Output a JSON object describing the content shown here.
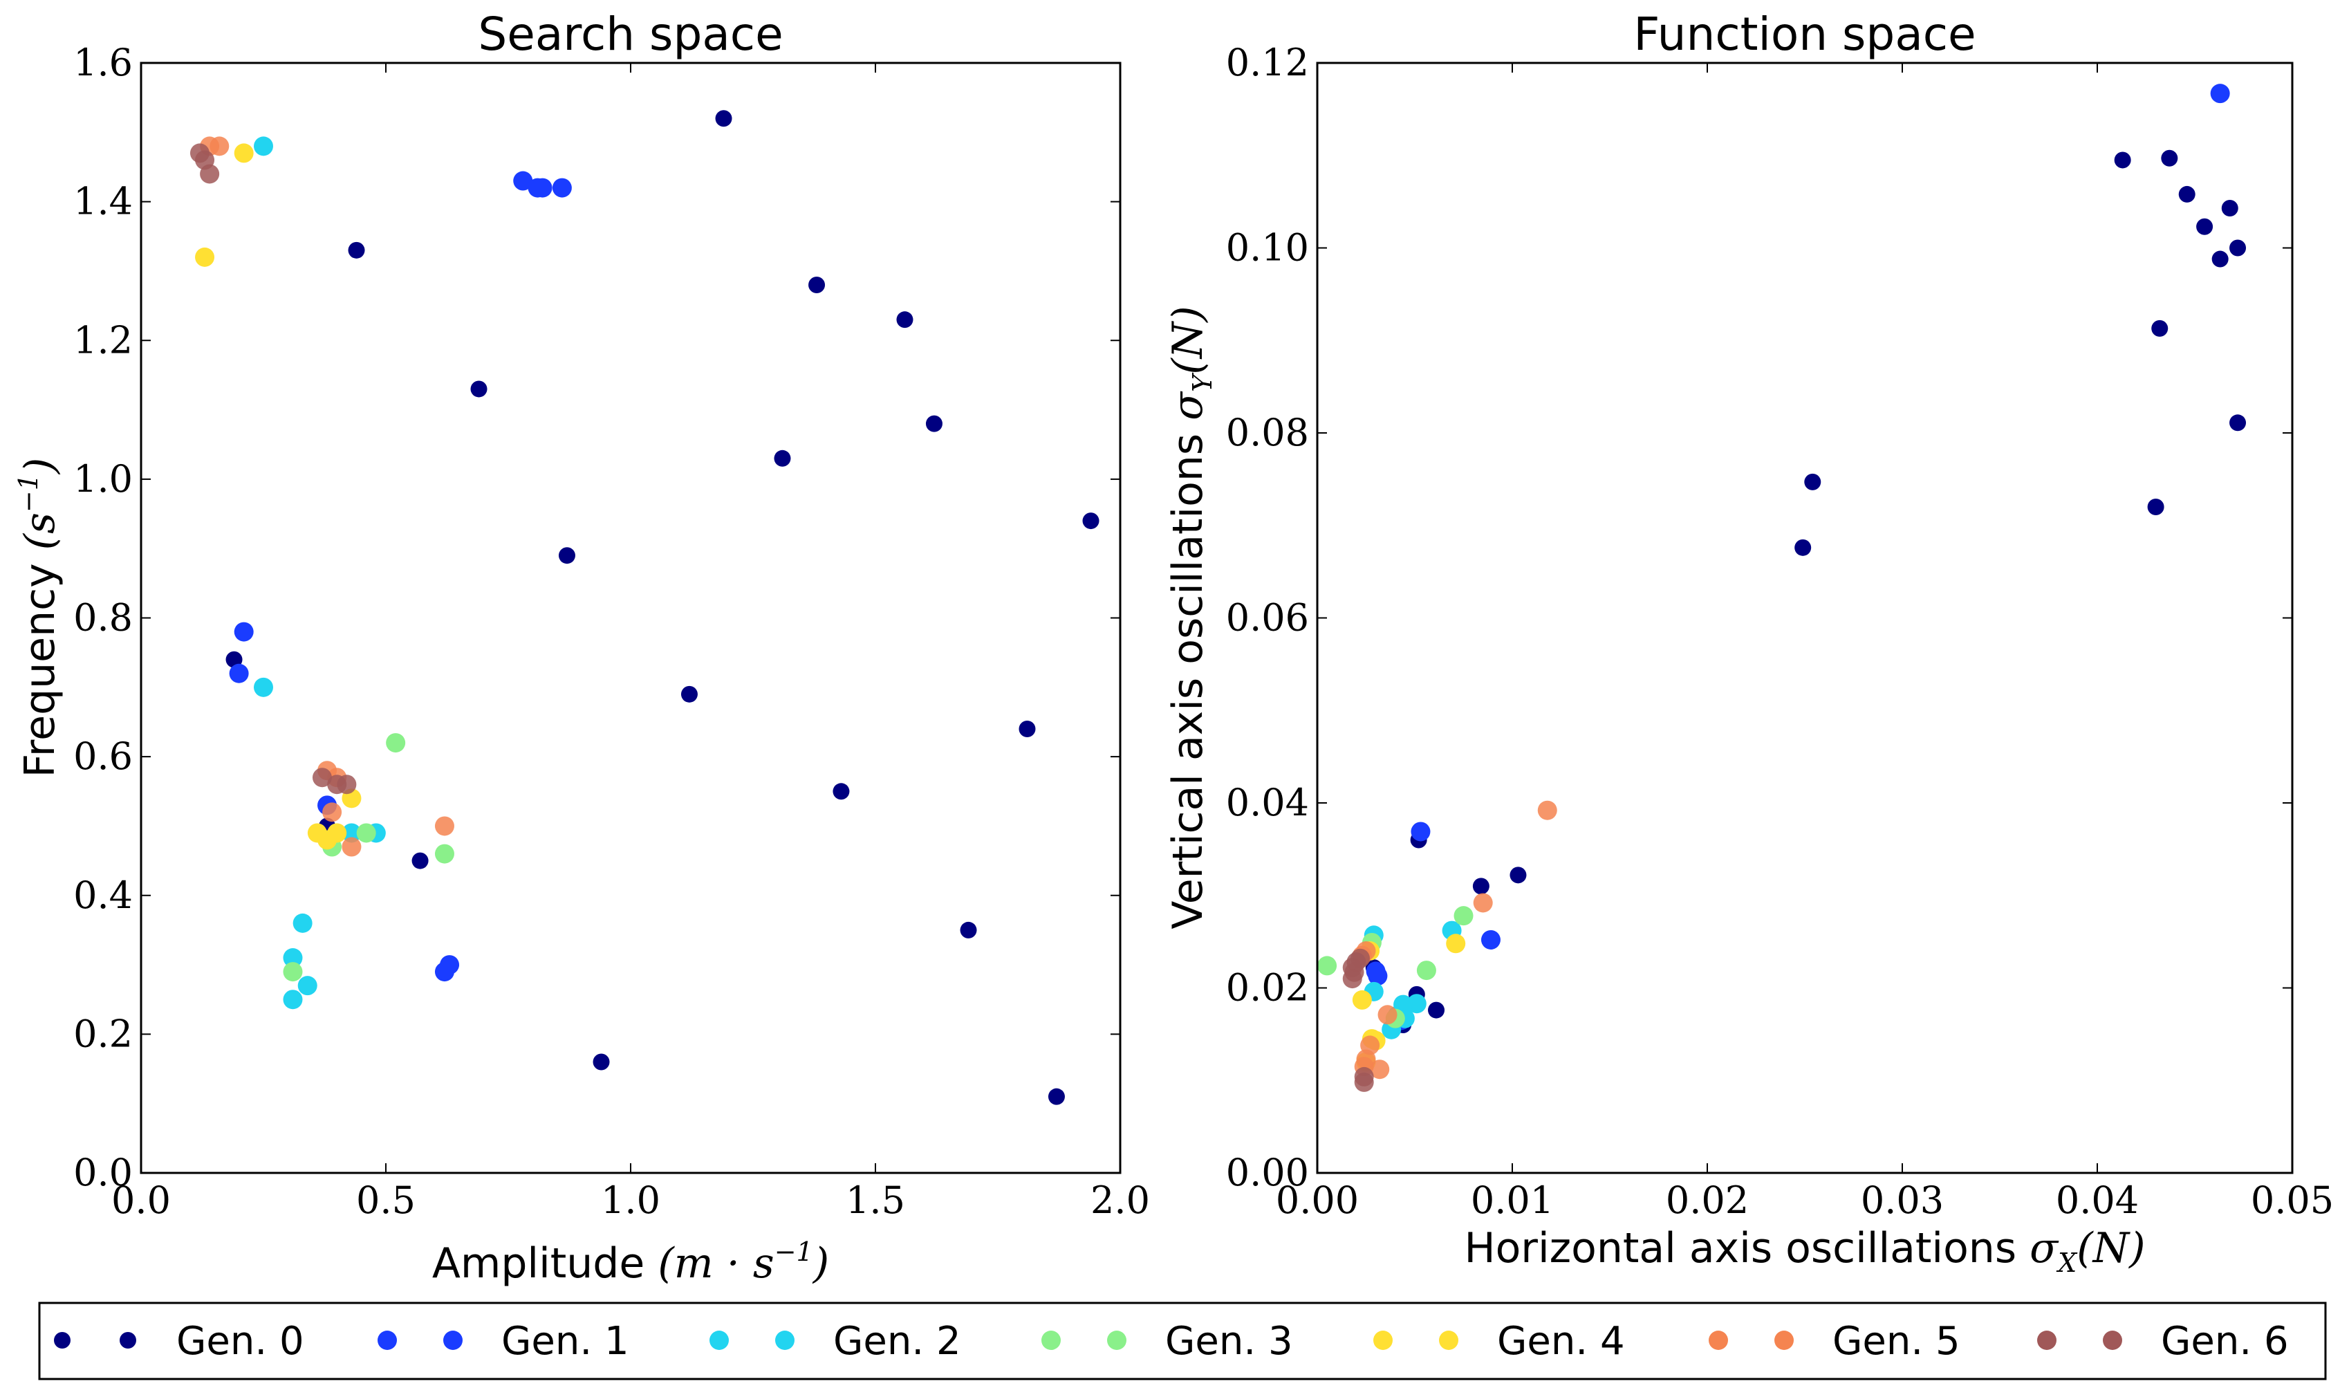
{
  "chart_data": [
    {
      "type": "scatter",
      "title": "Search space",
      "xlabel": "Amplitude",
      "xlabel_unit": "(m · s",
      "xlabel_unit_sup": "−1",
      "xlabel_unit_end": ")",
      "ylabel": "Frequency",
      "ylabel_unit": "(s",
      "ylabel_unit_sup": "−1",
      "ylabel_unit_end": ")",
      "xlim": [
        0,
        2.0
      ],
      "ylim": [
        0,
        1.6
      ],
      "xticks": [
        "0.0",
        "0.5",
        "1.0",
        "1.5",
        "2.0"
      ],
      "yticks": [
        "0.0",
        "0.2",
        "0.4",
        "0.6",
        "0.8",
        "1.0",
        "1.2",
        "1.4",
        "1.6"
      ],
      "grid": false,
      "series": [
        {
          "name": "Gen. 0",
          "color": "#000080",
          "points": [
            [
              1.19,
              1.52
            ],
            [
              0.44,
              1.33
            ],
            [
              1.38,
              1.28
            ],
            [
              1.56,
              1.23
            ],
            [
              0.69,
              1.13
            ],
            [
              1.62,
              1.08
            ],
            [
              1.31,
              1.03
            ],
            [
              1.94,
              0.94
            ],
            [
              0.87,
              0.89
            ],
            [
              0.19,
              0.74
            ],
            [
              1.12,
              0.69
            ],
            [
              1.81,
              0.64
            ],
            [
              1.43,
              0.55
            ],
            [
              0.38,
              0.5
            ],
            [
              0.57,
              0.45
            ],
            [
              1.69,
              0.35
            ],
            [
              0.94,
              0.16
            ],
            [
              1.87,
              0.11
            ]
          ]
        },
        {
          "name": "Gen. 1",
          "color": "#1a3cff",
          "points": [
            [
              0.78,
              1.43
            ],
            [
              0.81,
              1.42
            ],
            [
              0.82,
              1.42
            ],
            [
              0.86,
              1.42
            ],
            [
              0.21,
              0.78
            ],
            [
              0.2,
              0.72
            ],
            [
              0.38,
              0.53
            ],
            [
              0.62,
              0.29
            ],
            [
              0.63,
              0.3
            ]
          ]
        },
        {
          "name": "Gen. 2",
          "color": "#22d4f0",
          "points": [
            [
              0.25,
              1.48
            ],
            [
              0.25,
              0.7
            ],
            [
              0.33,
              0.36
            ],
            [
              0.31,
              0.31
            ],
            [
              0.34,
              0.27
            ],
            [
              0.31,
              0.25
            ],
            [
              0.48,
              0.49
            ],
            [
              0.43,
              0.49
            ]
          ]
        },
        {
          "name": "Gen. 3",
          "color": "#8af08a",
          "points": [
            [
              0.52,
              0.62
            ],
            [
              0.62,
              0.46
            ],
            [
              0.46,
              0.49
            ],
            [
              0.39,
              0.47
            ],
            [
              0.31,
              0.29
            ]
          ]
        },
        {
          "name": "Gen. 4",
          "color": "#ffe033",
          "points": [
            [
              0.21,
              1.47
            ],
            [
              0.13,
              1.32
            ],
            [
              0.43,
              0.54
            ],
            [
              0.36,
              0.49
            ],
            [
              0.38,
              0.48
            ],
            [
              0.4,
              0.49
            ]
          ]
        },
        {
          "name": "Gen. 5",
          "color": "#f58450",
          "points": [
            [
              0.16,
              1.48
            ],
            [
              0.14,
              1.48
            ],
            [
              0.38,
              0.58
            ],
            [
              0.4,
              0.57
            ],
            [
              0.39,
              0.52
            ],
            [
              0.62,
              0.5
            ],
            [
              0.43,
              0.47
            ]
          ]
        },
        {
          "name": "Gen. 6",
          "color": "#a05858",
          "points": [
            [
              0.12,
              1.47
            ],
            [
              0.13,
              1.46
            ],
            [
              0.14,
              1.44
            ],
            [
              0.37,
              0.57
            ],
            [
              0.42,
              0.56
            ],
            [
              0.4,
              0.56
            ]
          ]
        }
      ]
    },
    {
      "type": "scatter",
      "title": "Function space",
      "xlabel": "Horizontal axis oscillations",
      "xlabel_unit": "σ",
      "xlabel_unit_sub": "X",
      "xlabel_unit_end": "(N)",
      "ylabel": "Vertical axis oscillations",
      "ylabel_unit": "σ",
      "ylabel_unit_sub": "Y",
      "ylabel_unit_end": "(N)",
      "xlim": [
        0,
        0.05
      ],
      "ylim": [
        0,
        0.12
      ],
      "xticks": [
        "0.00",
        "0.01",
        "0.02",
        "0.03",
        "0.04",
        "0.05"
      ],
      "yticks": [
        "0.00",
        "0.02",
        "0.04",
        "0.06",
        "0.08",
        "0.10",
        "0.12"
      ],
      "grid": false,
      "series": [
        {
          "name": "Gen. 0",
          "color": "#000080",
          "points": [
            [
              0.0413,
              0.1095
            ],
            [
              0.0437,
              0.1097
            ],
            [
              0.0446,
              0.1058
            ],
            [
              0.0455,
              0.1023
            ],
            [
              0.0468,
              0.1043
            ],
            [
              0.0472,
              0.1
            ],
            [
              0.0463,
              0.0988
            ],
            [
              0.0432,
              0.0913
            ],
            [
              0.0472,
              0.0811
            ],
            [
              0.043,
              0.072
            ],
            [
              0.0254,
              0.0747
            ],
            [
              0.0249,
              0.0676
            ],
            [
              0.0103,
              0.0322
            ],
            [
              0.0084,
              0.031
            ],
            [
              0.0052,
              0.036
            ],
            [
              0.0061,
              0.0176
            ],
            [
              0.0051,
              0.0193
            ],
            [
              0.0029,
              0.0222
            ],
            [
              0.0044,
              0.016
            ]
          ]
        },
        {
          "name": "Gen. 1",
          "color": "#1a3cff",
          "points": [
            [
              0.0463,
              0.1167
            ],
            [
              0.0053,
              0.0369
            ],
            [
              0.0089,
              0.0252
            ],
            [
              0.003,
              0.0218
            ],
            [
              0.0031,
              0.0213
            ],
            [
              0.0043,
              0.0165
            ]
          ]
        },
        {
          "name": "Gen. 2",
          "color": "#22d4f0",
          "points": [
            [
              0.0029,
              0.0257
            ],
            [
              0.0069,
              0.0262
            ],
            [
              0.0051,
              0.0183
            ],
            [
              0.0044,
              0.0182
            ],
            [
              0.0041,
              0.017
            ],
            [
              0.0029,
              0.0196
            ],
            [
              0.0038,
              0.0155
            ],
            [
              0.0045,
              0.0167
            ]
          ]
        },
        {
          "name": "Gen. 3",
          "color": "#8af08a",
          "points": [
            [
              0.0005,
              0.0224
            ],
            [
              0.0056,
              0.0219
            ],
            [
              0.0075,
              0.0278
            ],
            [
              0.004,
              0.0167
            ],
            [
              0.0028,
              0.0249
            ]
          ]
        },
        {
          "name": "Gen. 4",
          "color": "#ffe033",
          "points": [
            [
              0.0071,
              0.0248
            ],
            [
              0.0023,
              0.0187
            ],
            [
              0.0028,
              0.0145
            ],
            [
              0.003,
              0.0143
            ],
            [
              0.0025,
              0.012
            ],
            [
              0.0027,
              0.024
            ]
          ]
        },
        {
          "name": "Gen. 5",
          "color": "#f58450",
          "points": [
            [
              0.0118,
              0.0392
            ],
            [
              0.0085,
              0.0292
            ],
            [
              0.0036,
              0.0171
            ],
            [
              0.0027,
              0.0138
            ],
            [
              0.0032,
              0.0112
            ],
            [
              0.0025,
              0.0123
            ],
            [
              0.0024,
              0.0115
            ],
            [
              0.0025,
              0.024
            ],
            [
              0.0023,
              0.0235
            ]
          ]
        },
        {
          "name": "Gen. 6",
          "color": "#a05858",
          "points": [
            [
              0.0018,
              0.0222
            ],
            [
              0.0019,
              0.0217
            ],
            [
              0.002,
              0.0228
            ],
            [
              0.0022,
              0.0232
            ],
            [
              0.0024,
              0.0104
            ],
            [
              0.0024,
              0.0098
            ],
            [
              0.0018,
              0.021
            ]
          ]
        }
      ]
    }
  ],
  "legend": {
    "placement": "bottom",
    "entries": [
      "Gen. 0",
      "Gen. 1",
      "Gen. 2",
      "Gen. 3",
      "Gen. 4",
      "Gen. 5",
      "Gen. 6"
    ],
    "colors": [
      "#000080",
      "#1a3cff",
      "#22d4f0",
      "#8af08a",
      "#ffe033",
      "#f58450",
      "#a05858"
    ]
  }
}
